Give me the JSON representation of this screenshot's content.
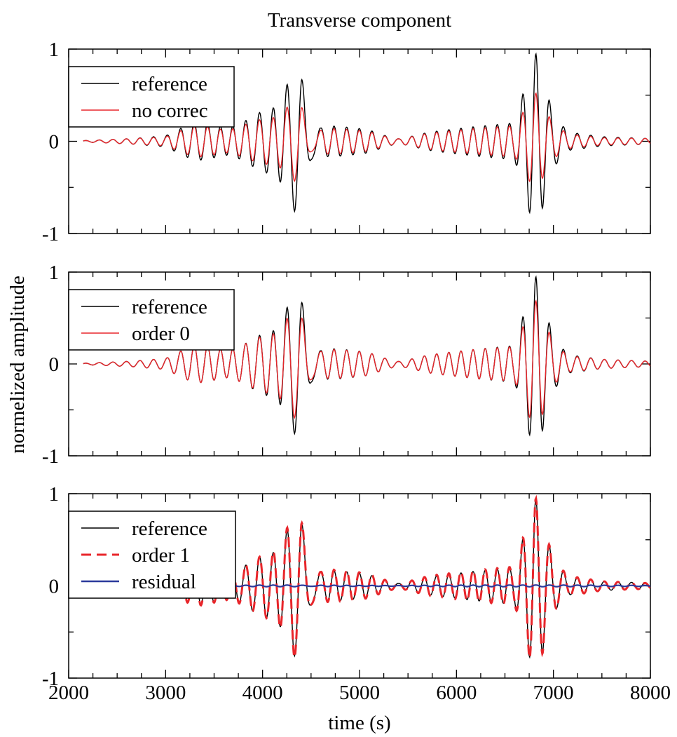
{
  "chart_data": {
    "type": "line",
    "title": "Transverse component",
    "xlabel": "time (s)",
    "ylabel": "normelized amplitude",
    "xlim": [
      2000,
      8000
    ],
    "ylim": [
      -1,
      1
    ],
    "x_ticks": [
      2000,
      3000,
      4000,
      5000,
      6000,
      7000,
      8000
    ],
    "y_ticks": [
      1,
      0,
      -1
    ],
    "y_tick_labels": [
      "1",
      "0",
      "-1"
    ],
    "grid": false,
    "sampling_step_s": 5,
    "panels": [
      {
        "legend_position": "top-left",
        "series": [
          {
            "name": "reference",
            "color": "#000000",
            "dash": "solid",
            "envelope": [
              [
                2000,
                0
              ],
              [
                2650,
                0.03
              ],
              [
                3000,
                0.06
              ],
              [
                3300,
                0.22
              ],
              [
                3800,
                0.24
              ],
              [
                4150,
                0.4
              ],
              [
                4330,
                0.88
              ],
              [
                4400,
                0.97
              ],
              [
                4500,
                0.4
              ],
              [
                4600,
                0.18
              ],
              [
                5100,
                0.14
              ],
              [
                5400,
                0.04
              ],
              [
                5700,
                0.1
              ],
              [
                6200,
                0.16
              ],
              [
                6600,
                0.2
              ],
              [
                6750,
                0.78
              ],
              [
                6810,
                1.0
              ],
              [
                6880,
                0.78
              ],
              [
                7000,
                0.3
              ],
              [
                7150,
                0.1
              ],
              [
                7500,
                0.05
              ],
              [
                8000,
                0.03
              ]
            ]
          },
          {
            "name": "no correc",
            "color": "#e8262b",
            "dash": "solid",
            "envelope": [
              [
                2000,
                0
              ],
              [
                2650,
                0.03
              ],
              [
                3000,
                0.05
              ],
              [
                3300,
                0.18
              ],
              [
                3800,
                0.2
              ],
              [
                4150,
                0.28
              ],
              [
                4330,
                0.5
              ],
              [
                4400,
                0.53
              ],
              [
                4500,
                0.22
              ],
              [
                4600,
                0.15
              ],
              [
                5100,
                0.12
              ],
              [
                5400,
                0.04
              ],
              [
                5700,
                0.09
              ],
              [
                6200,
                0.14
              ],
              [
                6600,
                0.17
              ],
              [
                6750,
                0.44
              ],
              [
                6810,
                0.55
              ],
              [
                6880,
                0.43
              ],
              [
                7000,
                0.2
              ],
              [
                7150,
                0.08
              ],
              [
                7500,
                0.04
              ],
              [
                8000,
                0.03
              ]
            ]
          }
        ]
      },
      {
        "legend_position": "top-left",
        "series": [
          {
            "name": "reference",
            "color": "#000000",
            "dash": "solid",
            "envelope": [
              [
                2000,
                0
              ],
              [
                2650,
                0.03
              ],
              [
                3000,
                0.06
              ],
              [
                3300,
                0.22
              ],
              [
                3800,
                0.24
              ],
              [
                4150,
                0.4
              ],
              [
                4330,
                0.88
              ],
              [
                4400,
                0.97
              ],
              [
                4500,
                0.4
              ],
              [
                4600,
                0.18
              ],
              [
                5100,
                0.14
              ],
              [
                5400,
                0.04
              ],
              [
                5700,
                0.1
              ],
              [
                6200,
                0.16
              ],
              [
                6600,
                0.2
              ],
              [
                6750,
                0.78
              ],
              [
                6810,
                1.0
              ],
              [
                6880,
                0.78
              ],
              [
                7000,
                0.3
              ],
              [
                7150,
                0.1
              ],
              [
                7500,
                0.05
              ],
              [
                8000,
                0.03
              ]
            ]
          },
          {
            "name": "order 0",
            "color": "#e8262b",
            "dash": "solid",
            "envelope": [
              [
                2000,
                0
              ],
              [
                2650,
                0.03
              ],
              [
                3000,
                0.06
              ],
              [
                3300,
                0.22
              ],
              [
                3800,
                0.24
              ],
              [
                4150,
                0.36
              ],
              [
                4330,
                0.68
              ],
              [
                4400,
                0.72
              ],
              [
                4500,
                0.34
              ],
              [
                4600,
                0.17
              ],
              [
                5100,
                0.14
              ],
              [
                5400,
                0.04
              ],
              [
                5700,
                0.1
              ],
              [
                6200,
                0.16
              ],
              [
                6600,
                0.19
              ],
              [
                6750,
                0.59
              ],
              [
                6810,
                0.72
              ],
              [
                6880,
                0.59
              ],
              [
                7000,
                0.24
              ],
              [
                7150,
                0.09
              ],
              [
                7500,
                0.05
              ],
              [
                8000,
                0.03
              ]
            ]
          }
        ]
      },
      {
        "legend_position": "top-left",
        "series": [
          {
            "name": "reference",
            "color": "#000000",
            "dash": "solid",
            "envelope": [
              [
                2000,
                0
              ],
              [
                2650,
                0.03
              ],
              [
                3000,
                0.06
              ],
              [
                3300,
                0.22
              ],
              [
                3800,
                0.24
              ],
              [
                4150,
                0.4
              ],
              [
                4330,
                0.88
              ],
              [
                4400,
                0.97
              ],
              [
                4500,
                0.4
              ],
              [
                4600,
                0.18
              ],
              [
                5100,
                0.14
              ],
              [
                5400,
                0.04
              ],
              [
                5700,
                0.1
              ],
              [
                6200,
                0.16
              ],
              [
                6600,
                0.2
              ],
              [
                6750,
                0.78
              ],
              [
                6810,
                1.0
              ],
              [
                6880,
                0.78
              ],
              [
                7000,
                0.3
              ],
              [
                7150,
                0.1
              ],
              [
                7500,
                0.05
              ],
              [
                8000,
                0.03
              ]
            ]
          },
          {
            "name": "order 1",
            "color": "#e8262b",
            "dash": "dashed",
            "envelope": [
              [
                2000,
                0
              ],
              [
                2650,
                0.03
              ],
              [
                3000,
                0.06
              ],
              [
                3300,
                0.23
              ],
              [
                3800,
                0.24
              ],
              [
                4150,
                0.41
              ],
              [
                4330,
                0.9
              ],
              [
                4400,
                0.99
              ],
              [
                4500,
                0.41
              ],
              [
                4600,
                0.19
              ],
              [
                5100,
                0.15
              ],
              [
                5400,
                0.04
              ],
              [
                5700,
                0.11
              ],
              [
                6200,
                0.17
              ],
              [
                6600,
                0.21
              ],
              [
                6750,
                0.79
              ],
              [
                6810,
                1.0
              ],
              [
                6880,
                0.79
              ],
              [
                7000,
                0.3
              ],
              [
                7150,
                0.11
              ],
              [
                7500,
                0.05
              ],
              [
                8000,
                0.03
              ]
            ]
          },
          {
            "name": "residual",
            "color": "#2b3a9b",
            "dash": "solid",
            "envelope": [
              [
                2000,
                0
              ],
              [
                3000,
                0.005
              ],
              [
                4400,
                0.01
              ],
              [
                5000,
                0.005
              ],
              [
                6800,
                0.01
              ],
              [
                8000,
                0.005
              ]
            ]
          }
        ]
      }
    ]
  }
}
